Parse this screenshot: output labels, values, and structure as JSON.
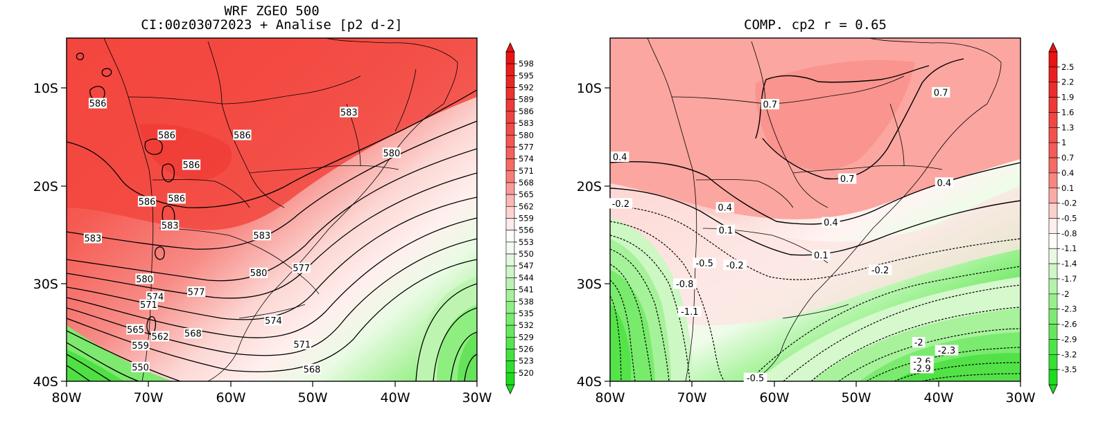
{
  "left_panel": {
    "title_line1": "WRF ZGEO 500",
    "title_line2": "CI:00z03072023 + Analise  [p2 d-2]",
    "lat_ticks": [
      "10S",
      "20S",
      "30S",
      "40S"
    ],
    "lon_ticks": [
      "80W",
      "70W",
      "60W",
      "50W",
      "40W",
      "30W"
    ],
    "colorbar_labels": [
      "598",
      "595",
      "592",
      "589",
      "586",
      "583",
      "580",
      "577",
      "574",
      "571",
      "568",
      "565",
      "562",
      "559",
      "556",
      "553",
      "550",
      "547",
      "544",
      "541",
      "538",
      "535",
      "532",
      "529",
      "526",
      "523",
      "520"
    ],
    "contour_labels": [
      {
        "text": "586",
        "lon": -76.2,
        "lat": -12.0
      },
      {
        "text": "586",
        "lon": -67.8,
        "lat": -15.2
      },
      {
        "text": "586",
        "lon": -58.6,
        "lat": -15.2
      },
      {
        "text": "586",
        "lon": -64.8,
        "lat": -18.2
      },
      {
        "text": "586",
        "lon": -70.2,
        "lat": -21.9
      },
      {
        "text": "586",
        "lon": -66.6,
        "lat": -21.6
      },
      {
        "text": "583",
        "lon": -67.4,
        "lat": -24.3
      },
      {
        "text": "583",
        "lon": -76.8,
        "lat": -25.6
      },
      {
        "text": "583",
        "lon": -56.2,
        "lat": -25.3
      },
      {
        "text": "583",
        "lon": -45.6,
        "lat": -12.9
      },
      {
        "text": "580",
        "lon": -40.4,
        "lat": -17.0
      },
      {
        "text": "580",
        "lon": -70.5,
        "lat": -29.7
      },
      {
        "text": "580",
        "lon": -56.6,
        "lat": -29.1
      },
      {
        "text": "577",
        "lon": -51.4,
        "lat": -28.6
      },
      {
        "text": "577",
        "lon": -64.2,
        "lat": -31.0
      },
      {
        "text": "574",
        "lon": -69.2,
        "lat": -31.5
      },
      {
        "text": "571",
        "lon": -70.0,
        "lat": -32.3
      },
      {
        "text": "574",
        "lon": -54.8,
        "lat": -33.9
      },
      {
        "text": "568",
        "lon": -64.6,
        "lat": -35.2
      },
      {
        "text": "571",
        "lon": -51.3,
        "lat": -36.3
      },
      {
        "text": "565",
        "lon": -71.6,
        "lat": -34.8
      },
      {
        "text": "562",
        "lon": -68.6,
        "lat": -35.5
      },
      {
        "text": "559",
        "lon": -71.0,
        "lat": -36.4
      },
      {
        "text": "550",
        "lon": -71.0,
        "lat": -38.6
      },
      {
        "text": "568",
        "lon": -50.1,
        "lat": -38.8
      }
    ]
  },
  "right_panel": {
    "title": "COMP. cp2  r =  0.65",
    "lat_ticks": [
      "10S",
      "20S",
      "30S",
      "40S"
    ],
    "lon_ticks": [
      "80W",
      "70W",
      "60W",
      "50W",
      "40W",
      "30W"
    ],
    "colorbar_labels": [
      "2.5",
      "2.2",
      "1.9",
      "1.6",
      "1.3",
      "1",
      "0.7",
      "0.4",
      "0.1",
      "-0.2",
      "-0.5",
      "-0.8",
      "-1.1",
      "-1.4",
      "-1.7",
      "-2",
      "-2.3",
      "-2.6",
      "-2.9",
      "-3.2",
      "-3.5"
    ],
    "contour_labels": [
      {
        "text": "0.7",
        "lon": -60.5,
        "lat": -12.1
      },
      {
        "text": "0.7",
        "lon": -39.7,
        "lat": -10.9
      },
      {
        "text": "0.4",
        "lon": -78.8,
        "lat": -17.4
      },
      {
        "text": "0.7",
        "lon": -51.1,
        "lat": -19.6
      },
      {
        "text": "0.4",
        "lon": -39.3,
        "lat": -20.0
      },
      {
        "text": "-0.2",
        "lon": -78.7,
        "lat": -22.1
      },
      {
        "text": "0.4",
        "lon": -66.0,
        "lat": -22.5
      },
      {
        "text": "0.4",
        "lon": -53.1,
        "lat": -24.0
      },
      {
        "text": "0.1",
        "lon": -65.9,
        "lat": -24.8
      },
      {
        "text": "0.1",
        "lon": -54.3,
        "lat": -27.3
      },
      {
        "text": "-0.5",
        "lon": -68.5,
        "lat": -28.1
      },
      {
        "text": "-0.2",
        "lon": -64.8,
        "lat": -28.3
      },
      {
        "text": "-0.2",
        "lon": -47.1,
        "lat": -28.8
      },
      {
        "text": "-0.8",
        "lon": -70.9,
        "lat": -30.2
      },
      {
        "text": "-1.1",
        "lon": -70.3,
        "lat": -33.0
      },
      {
        "text": "-2",
        "lon": -42.4,
        "lat": -36.1
      },
      {
        "text": "-2.3",
        "lon": -39.0,
        "lat": -36.9
      },
      {
        "text": "-2.6",
        "lon": -42.0,
        "lat": -38.0
      },
      {
        "text": "-2.9",
        "lon": -42.0,
        "lat": -38.7
      },
      {
        "text": "-0.5",
        "lon": -62.3,
        "lat": -39.7
      }
    ]
  }
}
